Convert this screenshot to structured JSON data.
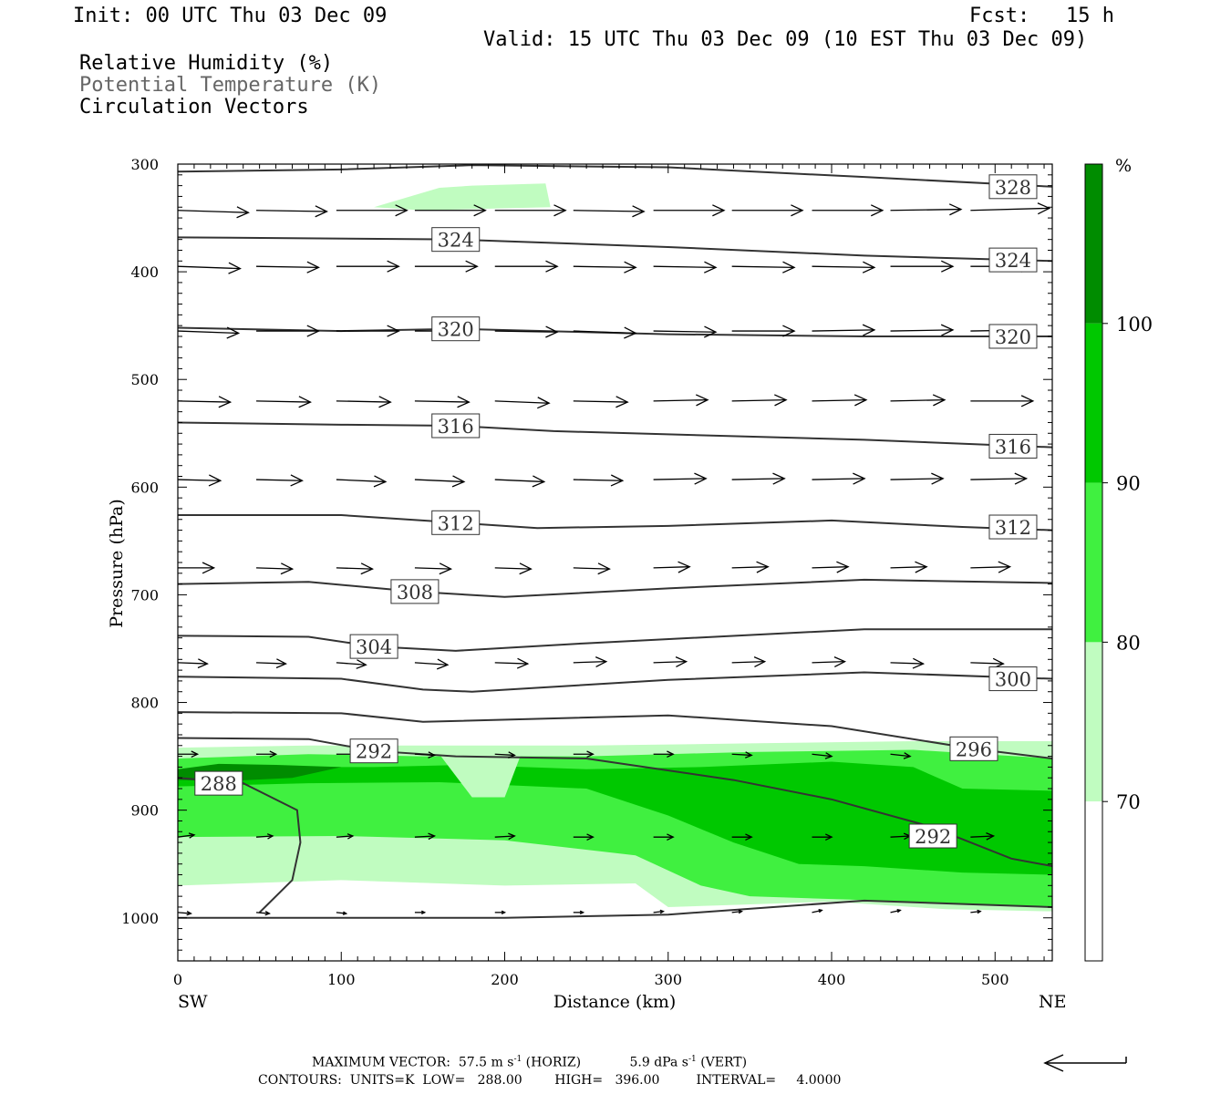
{
  "header": {
    "init": "Init: 00 UTC Thu 03 Dec 09",
    "fcst": "Fcst:   15 h",
    "valid": "Valid: 15 UTC Thu 03 Dec 09 (10 EST Thu 03 Dec 09)"
  },
  "fields": {
    "rh": "Relative Humidity (%)",
    "theta": "Potential Temperature (K)",
    "vectors": "Circulation Vectors"
  },
  "footer": {
    "max_vector_label": "MAXIMUM VECTOR:",
    "horiz_value": "57.5",
    "vert_value": "5.9",
    "m_unit": "m s",
    "dpa_unit": "dPa s",
    "exponent": "-1",
    "horiz_tag": "(HORIZ)",
    "vert_tag": "(VERT)",
    "contours": "CONTOURS:  UNITS=K  LOW=   288.00        HIGH=   396.00         INTERVAL=     4.0000"
  },
  "colors": {
    "rh70": "#c0fcc0",
    "rh80": "#40f040",
    "rh90": "#00c800",
    "rh100": "#008c00",
    "contour": "#333333"
  },
  "chart_data": {
    "type": "cross-section",
    "xlabel": "Distance (km)",
    "ylabel": "Pressure (hPa)",
    "xlim": [
      0,
      535
    ],
    "ylim": [
      1040,
      300
    ],
    "x_ticks": [
      0,
      100,
      200,
      300,
      400,
      500
    ],
    "y_ticks": [
      300,
      400,
      500,
      600,
      700,
      800,
      900,
      1000
    ],
    "x_end_labels": {
      "left": "SW",
      "right": "NE"
    },
    "colorbar": {
      "unit": "%",
      "levels": [
        70,
        80,
        90,
        100
      ]
    },
    "rh_regions": [
      {
        "level": 70,
        "points": [
          [
            0,
            842
          ],
          [
            80,
            840
          ],
          [
            160,
            840
          ],
          [
            250,
            840
          ],
          [
            350,
            838
          ],
          [
            450,
            836
          ],
          [
            535,
            836
          ],
          [
            535,
            994
          ],
          [
            470,
            992
          ],
          [
            400,
            985
          ],
          [
            340,
            988
          ],
          [
            300,
            990
          ],
          [
            280,
            968
          ],
          [
            200,
            970
          ],
          [
            100,
            965
          ],
          [
            0,
            970
          ]
        ]
      },
      {
        "level": 70,
        "points": [
          [
            120,
            340
          ],
          [
            160,
            322
          ],
          [
            180,
            320
          ],
          [
            225,
            318
          ],
          [
            228,
            340
          ],
          [
            150,
            343
          ]
        ]
      },
      {
        "level": 80,
        "points": [
          [
            0,
            852
          ],
          [
            80,
            848
          ],
          [
            150,
            850
          ],
          [
            250,
            850
          ],
          [
            350,
            846
          ],
          [
            450,
            844
          ],
          [
            535,
            852
          ],
          [
            535,
            990
          ],
          [
            450,
            985
          ],
          [
            350,
            980
          ],
          [
            320,
            970
          ],
          [
            280,
            942
          ],
          [
            200,
            928
          ],
          [
            100,
            924
          ],
          [
            0,
            925
          ]
        ]
      },
      {
        "level": 90,
        "points": [
          [
            0,
            868
          ],
          [
            60,
            860
          ],
          [
            120,
            860
          ],
          [
            175,
            858
          ],
          [
            250,
            862
          ],
          [
            320,
            860
          ],
          [
            400,
            855
          ],
          [
            450,
            860
          ],
          [
            480,
            880
          ],
          [
            535,
            882
          ],
          [
            535,
            960
          ],
          [
            480,
            958
          ],
          [
            420,
            952
          ],
          [
            380,
            950
          ],
          [
            360,
            940
          ],
          [
            340,
            930
          ],
          [
            300,
            905
          ],
          [
            250,
            880
          ],
          [
            160,
            874
          ],
          [
            80,
            875
          ],
          [
            0,
            878
          ]
        ]
      },
      {
        "level": 100,
        "points": [
          [
            0,
            862
          ],
          [
            25,
            857
          ],
          [
            60,
            858
          ],
          [
            100,
            860
          ],
          [
            70,
            870
          ],
          [
            30,
            873
          ],
          [
            0,
            872
          ]
        ]
      }
    ],
    "rh_gaps": [
      {
        "points": [
          [
            160,
            848
          ],
          [
            210,
            848
          ],
          [
            200,
            888
          ],
          [
            180,
            888
          ]
        ]
      }
    ],
    "theta_contours": [
      {
        "value": 328,
        "label_at": [
          511,
          321
        ],
        "points": [
          [
            0,
            307
          ],
          [
            100,
            305
          ],
          [
            180,
            301
          ],
          [
            300,
            303
          ],
          [
            420,
            312
          ],
          [
            535,
            321
          ]
        ]
      },
      {
        "value": 324,
        "label_at": [
          170,
          370
        ],
        "points": [
          [
            0,
            368
          ],
          [
            170,
            370
          ],
          [
            300,
            377
          ],
          [
            420,
            385
          ],
          [
            535,
            390
          ]
        ]
      },
      {
        "value": 324,
        "label_at": [
          511,
          389
        ],
        "points": []
      },
      {
        "value": 320,
        "label_at": [
          170,
          453
        ],
        "points": [
          [
            0,
            452
          ],
          [
            100,
            455
          ],
          [
            170,
            453
          ],
          [
            300,
            458
          ],
          [
            420,
            460
          ],
          [
            535,
            460
          ]
        ]
      },
      {
        "value": 320,
        "label_at": [
          511,
          460
        ],
        "points": []
      },
      {
        "value": 316,
        "label_at": [
          170,
          543
        ],
        "points": [
          [
            0,
            540
          ],
          [
            100,
            542
          ],
          [
            170,
            543
          ],
          [
            230,
            548
          ],
          [
            420,
            556
          ],
          [
            535,
            563
          ]
        ]
      },
      {
        "value": 316,
        "label_at": [
          511,
          562
        ],
        "points": []
      },
      {
        "value": 312,
        "label_at": [
          170,
          633
        ],
        "points": [
          [
            0,
            626
          ],
          [
            100,
            626
          ],
          [
            170,
            633
          ],
          [
            220,
            638
          ],
          [
            300,
            636
          ],
          [
            400,
            631
          ],
          [
            480,
            637
          ],
          [
            535,
            640
          ]
        ]
      },
      {
        "value": 312,
        "label_at": [
          511,
          637
        ],
        "points": []
      },
      {
        "value": 308,
        "label_at": [
          145,
          697
        ],
        "points": [
          [
            0,
            690
          ],
          [
            80,
            688
          ],
          [
            145,
            697
          ],
          [
            200,
            702
          ],
          [
            300,
            694
          ],
          [
            420,
            686
          ],
          [
            535,
            689
          ]
        ]
      },
      {
        "value": 304,
        "label_at": [
          120,
          748
        ],
        "points": [
          [
            0,
            738
          ],
          [
            80,
            739
          ],
          [
            120,
            748
          ],
          [
            170,
            752
          ],
          [
            250,
            745
          ],
          [
            420,
            732
          ],
          [
            535,
            732
          ]
        ]
      },
      {
        "value": 300,
        "label_at": [
          511,
          778
        ],
        "points": [
          [
            0,
            776
          ],
          [
            100,
            778
          ],
          [
            150,
            788
          ],
          [
            180,
            790
          ],
          [
            300,
            779
          ],
          [
            420,
            772
          ],
          [
            535,
            778
          ]
        ]
      },
      {
        "value": 296,
        "label_at": [
          487,
          843
        ],
        "points": [
          [
            0,
            809
          ],
          [
            100,
            810
          ],
          [
            150,
            818
          ],
          [
            300,
            812
          ],
          [
            400,
            822
          ],
          [
            487,
            843
          ],
          [
            535,
            852
          ]
        ]
      },
      {
        "value": 292,
        "label_at": [
          120,
          845
        ],
        "points": [
          [
            0,
            833
          ],
          [
            80,
            834
          ],
          [
            120,
            845
          ],
          [
            170,
            850
          ],
          [
            250,
            852
          ],
          [
            340,
            872
          ],
          [
            400,
            890
          ],
          [
            460,
            915
          ],
          [
            510,
            945
          ],
          [
            535,
            952
          ]
        ]
      },
      {
        "value": 292,
        "label_at": [
          462,
          924
        ],
        "points": []
      },
      {
        "value": 288,
        "label_at": [
          25,
          875
        ],
        "points": [
          [
            0,
            870
          ],
          [
            40,
            875
          ],
          [
            73,
            900
          ],
          [
            75,
            930
          ],
          [
            70,
            965
          ],
          [
            50,
            995
          ]
        ]
      },
      {
        "value": 0,
        "label_at": null,
        "points": [
          [
            0,
            1000
          ],
          [
            200,
            1000
          ],
          [
            300,
            997
          ],
          [
            420,
            984
          ],
          [
            535,
            990
          ]
        ]
      }
    ],
    "vectors": {
      "x": [
        0,
        48,
        97,
        145,
        194,
        242,
        291,
        339,
        388,
        436,
        485
      ],
      "rows": [
        {
          "p": 343,
          "u": [
            43,
            43,
            43,
            43,
            43,
            43,
            43,
            43,
            43,
            43,
            48
          ],
          "w": [
            2,
            1,
            0,
            0,
            0,
            1,
            0,
            0,
            0,
            -1,
            -2
          ]
        },
        {
          "p": 395,
          "u": [
            38,
            38,
            38,
            38,
            38,
            38,
            38,
            38,
            38,
            38,
            38
          ],
          "w": [
            2,
            1,
            0,
            0,
            0,
            1,
            1,
            1,
            1,
            0,
            0
          ]
        },
        {
          "p": 455,
          "u": [
            37,
            38,
            38,
            38,
            38,
            38,
            38,
            38,
            38,
            38,
            38
          ],
          "w": [
            2,
            0,
            0,
            0,
            1,
            2,
            1,
            0,
            -1,
            -1,
            -1
          ]
        },
        {
          "p": 520,
          "u": [
            32,
            33,
            33,
            33,
            33,
            33,
            33,
            33,
            33,
            33,
            38
          ],
          "w": [
            1,
            1,
            1,
            1,
            2,
            1,
            -1,
            -1,
            -1,
            -1,
            0
          ]
        },
        {
          "p": 593,
          "u": [
            26,
            28,
            30,
            30,
            30,
            30,
            32,
            32,
            32,
            32,
            34
          ],
          "w": [
            1,
            1,
            2,
            2,
            2,
            1,
            -1,
            -1,
            -1,
            -1,
            -1
          ]
        },
        {
          "p": 675,
          "u": [
            22,
            22,
            22,
            22,
            22,
            22,
            22,
            22,
            22,
            22,
            24
          ],
          "w": [
            0,
            1,
            1,
            1,
            1,
            1,
            -1,
            -1,
            -1,
            -1,
            -1
          ]
        },
        {
          "p": 763,
          "u": [
            18,
            18,
            18,
            20,
            20,
            20,
            20,
            20,
            20,
            20,
            20
          ],
          "w": [
            1,
            1,
            2,
            2,
            1,
            -1,
            -1,
            -1,
            -1,
            1,
            1
          ]
        },
        {
          "p": 848,
          "u": [
            12,
            12,
            12,
            12,
            12,
            12,
            12,
            12,
            12,
            12,
            12
          ],
          "w": [
            0,
            0,
            0,
            1,
            1,
            0,
            0,
            1,
            2,
            2,
            2
          ]
        },
        {
          "p": 925,
          "u": [
            10,
            10,
            10,
            12,
            12,
            12,
            12,
            12,
            12,
            12,
            14
          ],
          "w": [
            -2,
            -1,
            -1,
            -1,
            -1,
            0,
            0,
            0,
            0,
            -1,
            -1
          ]
        },
        {
          "p": 995,
          "u": [
            8,
            8,
            6,
            6,
            6,
            6,
            6,
            6,
            6,
            6,
            6
          ],
          "w": [
            1,
            1,
            1,
            0,
            0,
            0,
            -1,
            -1,
            -2,
            -2,
            -1
          ]
        }
      ]
    }
  }
}
